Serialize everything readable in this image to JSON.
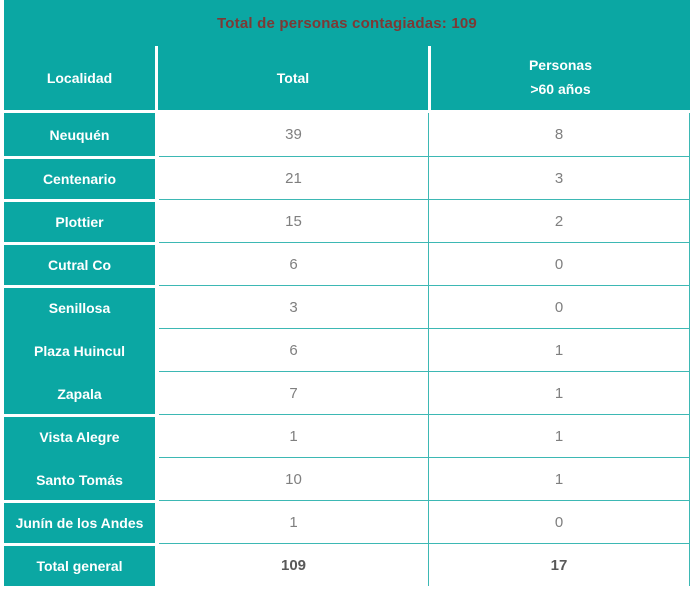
{
  "title": "Total de personas contagiadas: 109",
  "columns": {
    "localidad": "Localidad",
    "total": "Total",
    "personas_line1": "Personas",
    "personas_line2": ">60 años"
  },
  "rows": [
    {
      "localidad": "Neuquén",
      "total": "39",
      "personas_60": "8"
    },
    {
      "localidad": "Centenario",
      "total": "21",
      "personas_60": "3"
    },
    {
      "localidad": "Plottier",
      "total": "15",
      "personas_60": "2"
    },
    {
      "localidad": "Cutral Co",
      "total": "6",
      "personas_60": "0"
    },
    {
      "localidad": "Senillosa",
      "total": "3",
      "personas_60": "0"
    },
    {
      "localidad": "Plaza Huincul",
      "total": "6",
      "personas_60": "1"
    },
    {
      "localidad": "Zapala",
      "total": "7",
      "personas_60": "1"
    },
    {
      "localidad": "Vista Alegre",
      "total": "1",
      "personas_60": "1"
    },
    {
      "localidad": "Santo Tomás",
      "total": "10",
      "personas_60": "1"
    },
    {
      "localidad": "Junín de los Andes",
      "total": "1",
      "personas_60": "0"
    }
  ],
  "total_row": {
    "localidad": "Total general",
    "total": "109",
    "personas_60": "17"
  },
  "colors": {
    "teal_accent": "#0ba7a3",
    "gridline_teal": "#3db8b4",
    "title_text": "#7d3935",
    "header_text": "#ffffff",
    "value_text": "#7f7f7f",
    "total_value_text": "#595959",
    "background": "#ffffff"
  },
  "chart_data": {
    "type": "table",
    "title": "Total de personas contagiadas: 109",
    "columns": [
      "Localidad",
      "Total",
      "Personas >60 años"
    ],
    "rows": [
      [
        "Neuquén",
        39,
        8
      ],
      [
        "Centenario",
        21,
        3
      ],
      [
        "Plottier",
        15,
        2
      ],
      [
        "Cutral Co",
        6,
        0
      ],
      [
        "Senillosa",
        3,
        0
      ],
      [
        "Plaza Huincul",
        6,
        1
      ],
      [
        "Zapala",
        7,
        1
      ],
      [
        "Vista Alegre",
        1,
        1
      ],
      [
        "Santo Tomás",
        10,
        1
      ],
      [
        "Junín de los Andes",
        1,
        0
      ],
      [
        "Total general",
        109,
        17
      ]
    ]
  }
}
